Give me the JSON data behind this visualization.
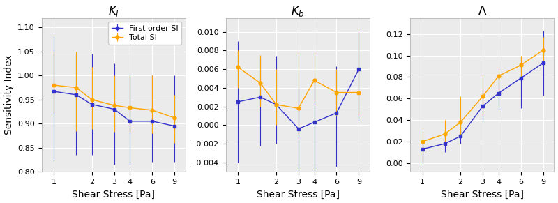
{
  "x": [
    1,
    1.5,
    2,
    3,
    4,
    6,
    9
  ],
  "panel1": {
    "title": "$\\mathit{K_l}$",
    "first_y": [
      0.967,
      0.96,
      0.94,
      0.93,
      0.905,
      0.905,
      0.895
    ],
    "first_yerr_lo": [
      0.145,
      0.125,
      0.105,
      0.115,
      0.09,
      0.085,
      0.075
    ],
    "first_yerr_hi": [
      0.115,
      0.085,
      0.105,
      0.095,
      0.095,
      0.095,
      0.105
    ],
    "total_y": [
      0.98,
      0.975,
      0.95,
      0.938,
      0.933,
      0.928,
      0.912
    ],
    "total_yerr_lo": [
      0.055,
      0.09,
      0.062,
      0.055,
      0.053,
      0.048,
      0.052
    ],
    "total_yerr_hi": [
      0.072,
      0.075,
      0.068,
      0.062,
      0.068,
      0.072,
      0.048
    ],
    "ylim": [
      0.8,
      1.12
    ],
    "yticks": [
      0.8,
      0.85,
      0.9,
      0.95,
      1.0,
      1.05,
      1.1
    ],
    "ylabel": "Sensitivity Index"
  },
  "panel2": {
    "title": "$\\mathit{K_b}$",
    "first_y": [
      0.0025,
      0.003,
      0.0022,
      -0.0004,
      0.0003,
      0.0013,
      0.006
    ],
    "first_yerr_lo": [
      0.0065,
      0.0052,
      0.0042,
      0.0055,
      0.0055,
      0.0058,
      0.0055
    ],
    "first_yerr_hi": [
      0.0065,
      0.0042,
      0.0052,
      0.0045,
      0.0048,
      0.005,
      0.004
    ],
    "total_y": [
      0.0062,
      0.0045,
      0.0022,
      0.0018,
      0.0048,
      0.0035,
      0.0035
    ],
    "total_yerr_lo": [
      0.0022,
      0.0025,
      0.0022,
      0.0028,
      0.0022,
      0.0025,
      0.0025
    ],
    "total_yerr_hi": [
      0.0018,
      0.003,
      0.0038,
      0.006,
      0.003,
      0.0025,
      0.0065
    ],
    "ylim": [
      -0.005,
      0.0115
    ],
    "yticks": [
      -0.004,
      -0.002,
      0.0,
      0.002,
      0.004,
      0.006,
      0.008,
      0.01
    ]
  },
  "panel3": {
    "title": "$\\Lambda$",
    "first_y": [
      0.013,
      0.018,
      0.025,
      0.053,
      0.065,
      0.079,
      0.093
    ],
    "first_yerr_lo": [
      0.013,
      0.008,
      0.007,
      0.015,
      0.015,
      0.028,
      0.03
    ],
    "first_yerr_hi": [
      0.007,
      0.008,
      0.016,
      0.015,
      0.015,
      0.02,
      0.03
    ],
    "total_y": [
      0.02,
      0.027,
      0.038,
      0.062,
      0.081,
      0.091,
      0.105
    ],
    "total_yerr_lo": [
      0.02,
      0.007,
      0.013,
      0.018,
      0.013,
      0.011,
      0.01
    ],
    "total_yerr_hi": [
      0.01,
      0.013,
      0.024,
      0.02,
      0.007,
      0.009,
      0.012
    ],
    "ylim": [
      -0.008,
      0.135
    ],
    "yticks": [
      0.0,
      0.02,
      0.04,
      0.06,
      0.08,
      0.1,
      0.12
    ]
  },
  "blue_color": "#3333cc",
  "orange_color": "#ffa500",
  "xlabel": "Shear Stress [Pa]",
  "xticks": [
    1,
    2,
    3,
    4,
    6,
    9
  ],
  "xticklabels": [
    "1",
    "2",
    "3",
    "4",
    "6",
    "9"
  ],
  "legend_labels": [
    "First order SI",
    "Total SI"
  ],
  "bg_color": "#ebebeb"
}
